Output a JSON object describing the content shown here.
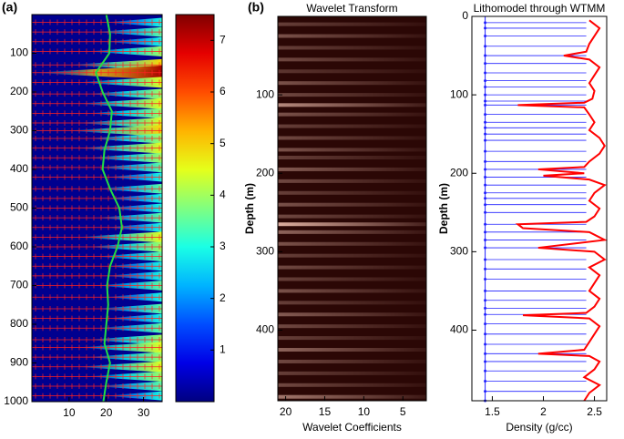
{
  "chart_data": [
    {
      "type": "heatmap",
      "label": "(a)",
      "colormap": "jet",
      "xlim": [
        0,
        35
      ],
      "xticks": [
        10,
        20,
        30
      ],
      "ylim": [
        0,
        1000
      ],
      "yticks": [
        100,
        200,
        300,
        400,
        500,
        600,
        700,
        800,
        900,
        1000
      ],
      "clim": [
        0,
        7.5
      ],
      "cticks": [
        1,
        2,
        3,
        4,
        5,
        6,
        7
      ],
      "background": "#00008f",
      "marker_color": "#ff2020",
      "rows": {
        "depth": [
          20,
          45,
          70,
          95,
          130,
          150,
          175,
          205,
          230,
          255,
          280,
          300,
          320,
          345,
          370,
          395,
          420,
          450,
          475,
          500,
          525,
          550,
          575,
          600,
          625,
          650,
          675,
          700,
          730,
          760,
          785,
          810,
          840,
          860,
          885,
          910,
          935,
          960,
          985
        ],
        "intensity": [
          3,
          3.5,
          3,
          4,
          5,
          7.2,
          4.5,
          4,
          4.5,
          4,
          4.5,
          5,
          4,
          4.5,
          4,
          3.5,
          3,
          3.5,
          3,
          3,
          3.5,
          3,
          4.5,
          4,
          3.5,
          3,
          3,
          3.5,
          3,
          3.5,
          3,
          3.5,
          4,
          4.5,
          4,
          4.5,
          4,
          3.5,
          3
        ]
      },
      "line": {
        "color": "#22dd44",
        "x": [
          20,
          21,
          20.8,
          17.2,
          19,
          21.5,
          21,
          19.5,
          19,
          21,
          23.5,
          24.2,
          23,
          21,
          20.2,
          20.5,
          20,
          19.5,
          21,
          20,
          19.2
        ],
        "y": [
          0,
          50,
          100,
          150,
          200,
          250,
          300,
          350,
          400,
          450,
          500,
          550,
          600,
          650,
          700,
          750,
          800,
          850,
          900,
          950,
          1000
        ]
      }
    },
    {
      "type": "heatmap",
      "label": "(b)",
      "title": "Wavelet Transform",
      "xlabel": "Wavelet Coefficients",
      "ylabel": "Depth (m)",
      "xlim": [
        21,
        2
      ],
      "xticks": [
        20,
        15,
        10,
        5
      ],
      "ylim": [
        0,
        490
      ],
      "yticks": [
        100,
        200,
        300,
        400
      ],
      "background": "#2b0705",
      "color": "#f0c0b0",
      "rows": {
        "depth": [
          10,
          25,
          40,
          55,
          70,
          85,
          100,
          113,
          125,
          140,
          155,
          170,
          180,
          195,
          210,
          225,
          240,
          255,
          265,
          275,
          290,
          305,
          320,
          335,
          350,
          365,
          380,
          395,
          410,
          425,
          440,
          455,
          470,
          485
        ],
        "intensity": [
          0.3,
          0.4,
          0.3,
          0.35,
          0.25,
          0.4,
          0.35,
          0.7,
          0.4,
          0.3,
          0.35,
          0.4,
          0.3,
          0.45,
          0.35,
          0.3,
          0.4,
          0.35,
          0.9,
          0.5,
          0.4,
          0.3,
          0.35,
          0.3,
          0.4,
          0.3,
          0.45,
          0.35,
          0.3,
          0.5,
          0.35,
          0.3,
          0.35,
          0.6
        ]
      }
    },
    {
      "type": "line",
      "title": "Lithomodel through WTMM",
      "xlabel": "Density (g/cc)",
      "ylabel": "Depth (m)",
      "xlim": [
        1.3,
        2.62
      ],
      "xticks": [
        1.5,
        {
          "value": 2,
          "label": "2"
        },
        2.5
      ],
      "ylim": [
        0,
        490
      ],
      "yticks": [
        0,
        100,
        200,
        300,
        400
      ],
      "series": [
        {
          "color": "#ff0000",
          "y": [
            5,
            15,
            25,
            35,
            45,
            50,
            55,
            65,
            75,
            85,
            95,
            105,
            110,
            113,
            116,
            125,
            135,
            145,
            155,
            165,
            175,
            185,
            192,
            195,
            200,
            203,
            208,
            215,
            225,
            235,
            245,
            255,
            262,
            265,
            270,
            275,
            285,
            295,
            300,
            310,
            320,
            330,
            340,
            350,
            360,
            370,
            378,
            381,
            385,
            395,
            405,
            415,
            425,
            430,
            433,
            440,
            450,
            460,
            470,
            480,
            490
          ],
          "x": [
            2.45,
            2.55,
            2.5,
            2.45,
            2.42,
            2.2,
            2.45,
            2.55,
            2.5,
            2.45,
            2.5,
            2.48,
            2.4,
            1.75,
            2.4,
            2.45,
            2.5,
            2.45,
            2.55,
            2.6,
            2.55,
            2.45,
            2.4,
            1.95,
            2.4,
            2.0,
            2.45,
            2.6,
            2.5,
            2.45,
            2.55,
            2.5,
            2.42,
            1.75,
            1.8,
            2.45,
            2.6,
            1.95,
            2.5,
            2.6,
            2.45,
            2.55,
            2.5,
            2.45,
            2.55,
            2.5,
            2.42,
            1.8,
            2.45,
            2.55,
            2.5,
            2.45,
            2.4,
            1.95,
            2.45,
            2.55,
            2.5,
            2.4,
            2.55,
            2.45,
            2.4
          ]
        }
      ],
      "interfaces": {
        "color": "#2020ff",
        "x": [
          1.43,
          2.42
        ],
        "depths": [
          8,
          15,
          25,
          38,
          50,
          60,
          72,
          82,
          90,
          100,
          108,
          113,
          125,
          135,
          142,
          150,
          158,
          172,
          185,
          195,
          205,
          215,
          225,
          232,
          240,
          250,
          265,
          275,
          285,
          295,
          310,
          322,
          335,
          350,
          362,
          372,
          380,
          392,
          405,
          418,
          430,
          440,
          452,
          465,
          478,
          490
        ]
      }
    }
  ]
}
